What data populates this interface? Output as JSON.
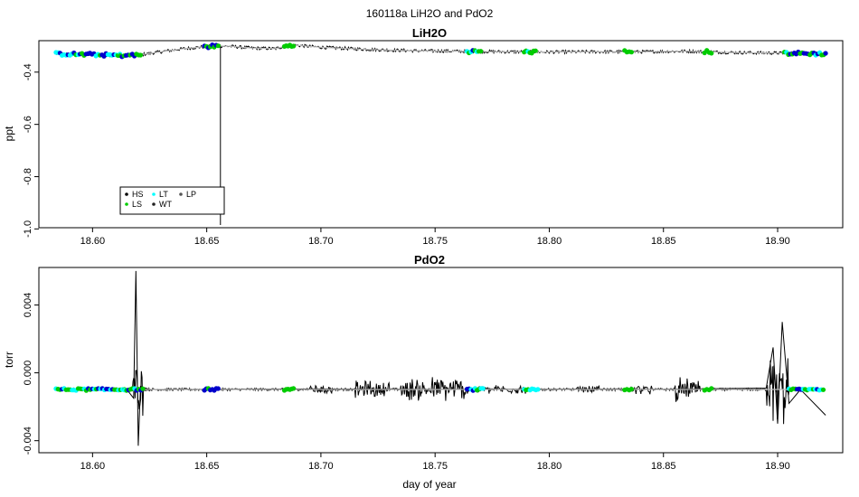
{
  "page": {
    "title": "160118a   LiH2O and PdO2"
  },
  "chart_data": [
    {
      "type": "line",
      "title": "LiH2O",
      "xlabel": "",
      "ylabel": "ppt",
      "xlim": [
        18.5765,
        18.9285
      ],
      "ylim": [
        -1.0,
        -0.27
      ],
      "x_ticks": [
        "18.60",
        "18.65",
        "18.70",
        "18.75",
        "18.80",
        "18.85",
        "18.90"
      ],
      "x_tick_values": [
        18.6,
        18.65,
        18.7,
        18.75,
        18.8,
        18.85,
        18.9
      ],
      "y_ticks": [
        "-1.0",
        "-0.8",
        "-0.6",
        "-0.4"
      ],
      "y_tick_values": [
        -1.0,
        -0.8,
        -0.6,
        -0.4
      ],
      "grid": false,
      "legend_position": "bottom-left",
      "legend": [
        {
          "label": "HS",
          "color": "#000000"
        },
        {
          "label": "LT",
          "color": "#00ffff"
        },
        {
          "label": "LP",
          "color": "#555555"
        },
        {
          "label": "LS",
          "color": "#00cc00"
        },
        {
          "label": "WT",
          "color": "#222222"
        }
      ],
      "series": [
        {
          "color": "#000000",
          "x": [
            18.584,
            18.595,
            18.605,
            18.612,
            18.62,
            18.63,
            18.64,
            18.65,
            18.655,
            18.66,
            18.67,
            18.68,
            18.685,
            18.69,
            18.7,
            18.72,
            18.74,
            18.76,
            18.78,
            18.8,
            18.82,
            18.84,
            18.86,
            18.88,
            18.9,
            18.921
          ],
          "y": [
            -0.33,
            -0.332,
            -0.334,
            -0.336,
            -0.335,
            -0.322,
            -0.31,
            -0.302,
            -0.3,
            -0.301,
            -0.308,
            -0.31,
            -0.3,
            -0.298,
            -0.305,
            -0.313,
            -0.318,
            -0.32,
            -0.322,
            -0.323,
            -0.322,
            -0.322,
            -0.32,
            -0.325,
            -0.327,
            -0.33
          ]
        }
      ],
      "spike": {
        "x": 18.656,
        "y": -0.985
      },
      "marker_segments": [
        {
          "x0": 18.584,
          "x1": 18.612,
          "colors": [
            "#0000cc",
            "#00cc00",
            "#00ffff",
            "#0000cc"
          ]
        },
        {
          "x0": 18.612,
          "x1": 18.621,
          "colors": [
            "#0000cc",
            "#00cc00"
          ]
        },
        {
          "x0": 18.649,
          "x1": 18.655,
          "colors": [
            "#00cc00",
            "#0000cc"
          ]
        },
        {
          "x0": 18.684,
          "x1": 18.688,
          "colors": [
            "#00cc00"
          ]
        },
        {
          "x0": 18.764,
          "x1": 18.77,
          "colors": [
            "#00ffff",
            "#0000cc",
            "#00cc00"
          ]
        },
        {
          "x0": 18.789,
          "x1": 18.794,
          "colors": [
            "#00cc00",
            "#00ffff"
          ]
        },
        {
          "x0": 18.833,
          "x1": 18.836,
          "colors": [
            "#00cc00"
          ]
        },
        {
          "x0": 18.868,
          "x1": 18.871,
          "colors": [
            "#00cc00"
          ]
        },
        {
          "x0": 18.903,
          "x1": 18.921,
          "colors": [
            "#0000cc",
            "#00cc00",
            "#00ffff",
            "#0000cc"
          ]
        }
      ]
    },
    {
      "type": "line",
      "title": "PdO2",
      "xlabel": "day of year",
      "ylabel": "torr",
      "xlim": [
        18.5765,
        18.9285
      ],
      "ylim": [
        -0.0048,
        0.0063
      ],
      "x_ticks": [
        "18.60",
        "18.65",
        "18.70",
        "18.75",
        "18.80",
        "18.85",
        "18.90"
      ],
      "x_tick_values": [
        18.6,
        18.65,
        18.7,
        18.75,
        18.8,
        18.85,
        18.9
      ],
      "y_ticks": [
        "-0.004",
        "0.000",
        "0.004"
      ],
      "y_tick_values": [
        -0.004,
        0.0,
        0.004
      ],
      "grid": false,
      "baseline": -0.00098,
      "series": [
        {
          "color": "#000000",
          "x": [
            18.584,
            18.615,
            18.618,
            18.619,
            18.62,
            18.621,
            18.625,
            18.7,
            18.75,
            18.8,
            18.85,
            18.895,
            18.898,
            18.9,
            18.902,
            18.905,
            18.91,
            18.921
          ],
          "y": [
            -0.00098,
            -0.00098,
            -0.0015,
            0.006,
            -0.0043,
            -0.0008,
            -0.00098,
            -0.00095,
            -0.00097,
            -0.00096,
            -0.00097,
            -0.0009,
            0.0015,
            -0.003,
            0.003,
            -0.0018,
            -0.00098,
            -0.0025
          ]
        }
      ],
      "bursts": [
        {
          "x0": 18.617,
          "x1": 18.622,
          "amp": 0.002
        },
        {
          "x0": 18.695,
          "x1": 18.705,
          "amp": 0.00035
        },
        {
          "x0": 18.715,
          "x1": 18.73,
          "amp": 0.0006
        },
        {
          "x0": 18.735,
          "x1": 18.765,
          "amp": 0.00085
        },
        {
          "x0": 18.768,
          "x1": 18.79,
          "amp": 0.0003
        },
        {
          "x0": 18.812,
          "x1": 18.822,
          "amp": 0.00025
        },
        {
          "x0": 18.835,
          "x1": 18.845,
          "amp": 0.00035
        },
        {
          "x0": 18.855,
          "x1": 18.866,
          "amp": 0.00075
        },
        {
          "x0": 18.895,
          "x1": 18.905,
          "amp": 0.0025
        }
      ],
      "marker_segments": [
        {
          "x0": 18.584,
          "x1": 18.614,
          "colors": [
            "#0000cc",
            "#00cc00",
            "#00ffff"
          ]
        },
        {
          "x0": 18.614,
          "x1": 18.622,
          "colors": [
            "#00cc00",
            "#00ffff",
            "#0000cc"
          ]
        },
        {
          "x0": 18.649,
          "x1": 18.655,
          "colors": [
            "#00cc00",
            "#0000cc"
          ]
        },
        {
          "x0": 18.684,
          "x1": 18.688,
          "colors": [
            "#00cc00"
          ]
        },
        {
          "x0": 18.764,
          "x1": 18.771,
          "colors": [
            "#00ffff",
            "#0000cc",
            "#00cc00"
          ]
        },
        {
          "x0": 18.789,
          "x1": 18.795,
          "colors": [
            "#00cc00",
            "#00ffff"
          ]
        },
        {
          "x0": 18.833,
          "x1": 18.836,
          "colors": [
            "#00cc00"
          ]
        },
        {
          "x0": 18.868,
          "x1": 18.871,
          "colors": [
            "#00cc00"
          ]
        },
        {
          "x0": 18.905,
          "x1": 18.92,
          "colors": [
            "#0000cc",
            "#00cc00",
            "#00ffff"
          ]
        }
      ]
    }
  ]
}
